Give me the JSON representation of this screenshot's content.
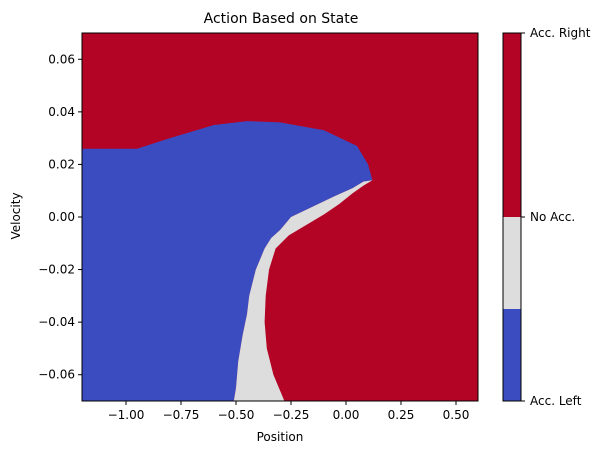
{
  "chart_data": {
    "type": "heatmap",
    "title": "Action Based on State",
    "xlabel": "Position",
    "ylabel": "Velocity",
    "xlim": [
      -1.2,
      0.6
    ],
    "ylim": [
      -0.07,
      0.07
    ],
    "x_ticks": [
      -1.0,
      -0.75,
      -0.5,
      -0.25,
      0.0,
      0.25,
      0.5
    ],
    "x_tick_labels": [
      "−1.00",
      "−0.75",
      "−0.50",
      "−0.25",
      "0.00",
      "0.25",
      "0.50"
    ],
    "y_ticks": [
      -0.06,
      -0.04,
      -0.02,
      0.0,
      0.02,
      0.04,
      0.06
    ],
    "y_tick_labels": [
      "−0.06",
      "−0.04",
      "−0.02",
      "0.00",
      "0.02",
      "0.04",
      "0.06"
    ],
    "colors": {
      "acc_left": "#3b4cc0",
      "no_acc": "#dddddd",
      "acc_right": "#b40426"
    },
    "colorbar": {
      "labels": [
        "Acc. Left",
        "No Acc.",
        "Acc. Right"
      ],
      "values": [
        0,
        1,
        2
      ],
      "boundaries": [
        0.0,
        0.25,
        0.5,
        1.0
      ]
    },
    "regions": [
      {
        "action": "acc_left",
        "label": "Acc. Left",
        "polygon": [
          [
            -1.2,
            0.026
          ],
          [
            -0.95,
            0.026
          ],
          [
            -0.8,
            0.03
          ],
          [
            -0.6,
            0.035
          ],
          [
            -0.45,
            0.0365
          ],
          [
            -0.3,
            0.036
          ],
          [
            -0.1,
            0.033
          ],
          [
            0.05,
            0.027
          ],
          [
            0.1,
            0.02
          ],
          [
            0.12,
            0.014
          ],
          [
            0.08,
            0.0135
          ],
          [
            0.03,
            0.011
          ],
          [
            -0.05,
            0.008
          ],
          [
            -0.15,
            0.004
          ],
          [
            -0.25,
            0.0
          ],
          [
            -0.3,
            -0.005
          ],
          [
            -0.34,
            -0.008
          ],
          [
            -0.37,
            -0.012
          ],
          [
            -0.41,
            -0.02
          ],
          [
            -0.44,
            -0.03
          ],
          [
            -0.45,
            -0.037
          ],
          [
            -0.47,
            -0.045
          ],
          [
            -0.49,
            -0.055
          ],
          [
            -0.5,
            -0.065
          ],
          [
            -0.51,
            -0.07
          ],
          [
            -1.2,
            -0.07
          ]
        ]
      },
      {
        "action": "no_acc",
        "label": "No Acc.",
        "polygon": [
          [
            0.12,
            0.014
          ],
          [
            0.08,
            0.0135
          ],
          [
            0.03,
            0.011
          ],
          [
            -0.05,
            0.008
          ],
          [
            -0.15,
            0.004
          ],
          [
            -0.25,
            0.0
          ],
          [
            -0.3,
            -0.005
          ],
          [
            -0.34,
            -0.008
          ],
          [
            -0.37,
            -0.012
          ],
          [
            -0.41,
            -0.02
          ],
          [
            -0.44,
            -0.03
          ],
          [
            -0.45,
            -0.037
          ],
          [
            -0.47,
            -0.045
          ],
          [
            -0.49,
            -0.055
          ],
          [
            -0.5,
            -0.065
          ],
          [
            -0.51,
            -0.07
          ],
          [
            -0.28,
            -0.07
          ],
          [
            -0.33,
            -0.06
          ],
          [
            -0.36,
            -0.05
          ],
          [
            -0.37,
            -0.04
          ],
          [
            -0.365,
            -0.03
          ],
          [
            -0.35,
            -0.02
          ],
          [
            -0.32,
            -0.012
          ],
          [
            -0.26,
            -0.007
          ],
          [
            -0.18,
            -0.003
          ],
          [
            -0.1,
            0.001
          ],
          [
            -0.03,
            0.005
          ],
          [
            0.03,
            0.009
          ],
          [
            0.08,
            0.012
          ]
        ]
      }
    ]
  }
}
